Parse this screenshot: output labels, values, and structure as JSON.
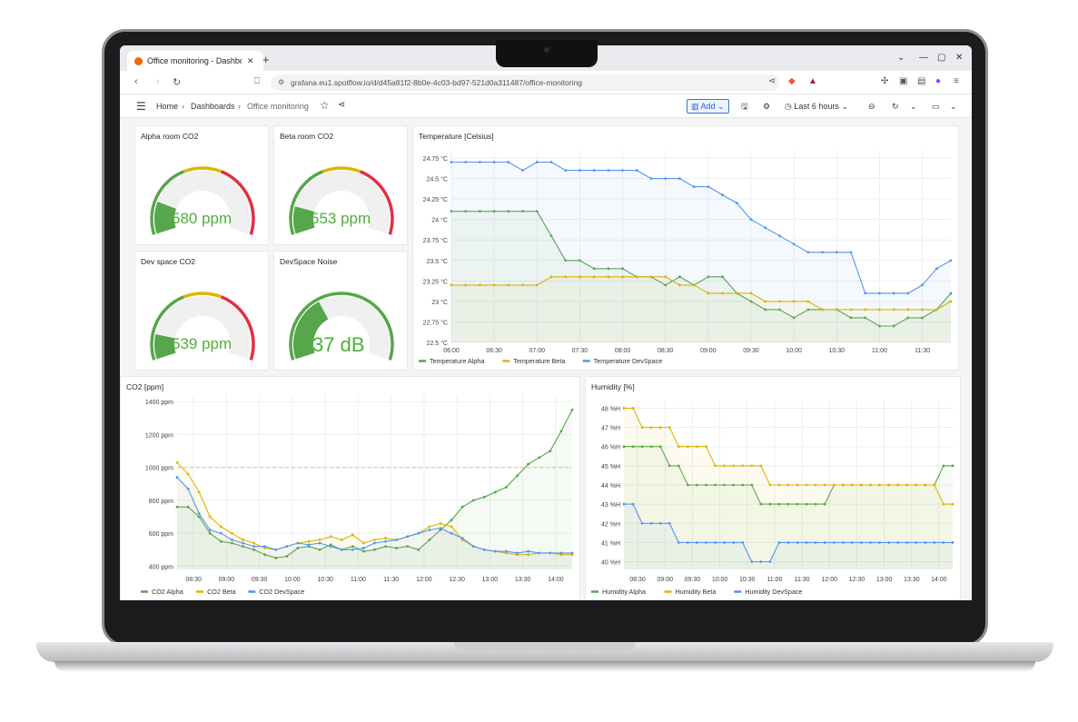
{
  "browser": {
    "tab_title": "Office monitoring - Dashboa",
    "url": "grafana.eu1.spotflow.io/d/d45a81f2-8b0e-4c03-bd97-521d0a311487/office-monitoring"
  },
  "nav": {
    "breadcrumb": [
      "Home",
      "Dashboards",
      "Office monitoring"
    ],
    "add_label": "Add",
    "time_range": "Last 6 hours"
  },
  "gauges": [
    {
      "title": "Alpha room CO2",
      "value": 580,
      "display": "580 ppm",
      "min": 400,
      "max": 1400
    },
    {
      "title": "Beta room CO2",
      "value": 553,
      "display": "553 ppm",
      "min": 400,
      "max": 1400
    },
    {
      "title": "Dev space CO2",
      "value": 539,
      "display": "539 ppm",
      "min": 400,
      "max": 1400
    },
    {
      "title": "DevSpace Noise",
      "value": 37,
      "display": "37 dB",
      "min": 0,
      "max": 100
    }
  ],
  "colors": {
    "green": "#56a64b",
    "yellow": "#e0b400",
    "blue": "#5794f2",
    "red": "#e02f44",
    "gauge_bg": "#f0f0f0"
  },
  "chart_data": [
    {
      "type": "line",
      "title": "Temperature [Celsius]",
      "x": [
        "06:00",
        "06:10",
        "06:20",
        "06:30",
        "06:40",
        "06:50",
        "07:00",
        "07:10",
        "07:20",
        "07:30",
        "07:40",
        "07:50",
        "08:00",
        "08:10",
        "08:20",
        "08:30",
        "08:40",
        "08:50",
        "09:00",
        "09:10",
        "09:20",
        "09:30",
        "09:40",
        "09:50",
        "10:00",
        "10:10",
        "10:20",
        "10:30",
        "10:40",
        "10:50",
        "11:00",
        "11:10",
        "11:20",
        "11:30",
        "11:40",
        "11:50"
      ],
      "x_ticks": [
        "06:00",
        "06:30",
        "07:00",
        "07:30",
        "08:00",
        "08:30",
        "09:00",
        "09:30",
        "10:00",
        "10:30",
        "11:00",
        "11:30"
      ],
      "y_ticks": [
        "22.5 °C",
        "22.75 °C",
        "23 °C",
        "23.25 °C",
        "23.5 °C",
        "23.75 °C",
        "24 °C",
        "24.25 °C",
        "24.5 °C",
        "24.75 °C"
      ],
      "ylim": [
        22.5,
        24.85
      ],
      "series": [
        {
          "name": "Temperature Alpha",
          "color": "#56a64b",
          "values": [
            24.1,
            24.1,
            24.1,
            24.1,
            24.1,
            24.1,
            24.1,
            23.8,
            23.5,
            23.5,
            23.4,
            23.4,
            23.4,
            23.3,
            23.3,
            23.2,
            23.3,
            23.2,
            23.3,
            23.3,
            23.1,
            23.0,
            22.9,
            22.9,
            22.8,
            22.9,
            22.9,
            22.9,
            22.8,
            22.8,
            22.7,
            22.7,
            22.8,
            22.8,
            22.9,
            23.1
          ]
        },
        {
          "name": "Temperature Beta",
          "color": "#e0b400",
          "values": [
            23.2,
            23.2,
            23.2,
            23.2,
            23.2,
            23.2,
            23.2,
            23.3,
            23.3,
            23.3,
            23.3,
            23.3,
            23.3,
            23.3,
            23.3,
            23.3,
            23.2,
            23.2,
            23.1,
            23.1,
            23.1,
            23.1,
            23.0,
            23.0,
            23.0,
            23.0,
            22.9,
            22.9,
            22.9,
            22.9,
            22.9,
            22.9,
            22.9,
            22.9,
            22.9,
            23.0
          ]
        },
        {
          "name": "Temperature DevSpace",
          "color": "#5794f2",
          "values": [
            24.7,
            24.7,
            24.7,
            24.7,
            24.7,
            24.6,
            24.7,
            24.7,
            24.6,
            24.6,
            24.6,
            24.6,
            24.6,
            24.6,
            24.5,
            24.5,
            24.5,
            24.4,
            24.4,
            24.3,
            24.2,
            24.0,
            23.9,
            23.8,
            23.7,
            23.6,
            23.6,
            23.6,
            23.6,
            23.1,
            23.1,
            23.1,
            23.1,
            23.2,
            23.4,
            23.5
          ]
        }
      ]
    },
    {
      "type": "line",
      "title": "CO2 [ppm]",
      "x": [
        "08:15",
        "08:25",
        "08:35",
        "08:45",
        "08:55",
        "09:05",
        "09:15",
        "09:25",
        "09:35",
        "09:45",
        "09:55",
        "10:05",
        "10:15",
        "10:25",
        "10:35",
        "10:45",
        "10:55",
        "11:05",
        "11:15",
        "11:25",
        "11:35",
        "11:45",
        "11:55",
        "12:05",
        "12:15",
        "12:25",
        "12:35",
        "12:45",
        "12:55",
        "13:05",
        "13:15",
        "13:25",
        "13:35",
        "13:45",
        "13:55",
        "14:05",
        "14:15"
      ],
      "x_ticks": [
        "08:30",
        "09:00",
        "09:30",
        "10:00",
        "10:30",
        "11:00",
        "11:30",
        "12:00",
        "12:30",
        "13:00",
        "13:30",
        "14:00"
      ],
      "y_ticks": [
        "400 ppm",
        "600 ppm",
        "800 ppm",
        "1000 ppm",
        "1200 ppm",
        "1400 ppm"
      ],
      "ylim": [
        380,
        1440
      ],
      "threshold": 1000,
      "series": [
        {
          "name": "CO2 Alpha",
          "color": "#56a64b",
          "values": [
            760,
            760,
            700,
            600,
            550,
            540,
            520,
            500,
            470,
            450,
            460,
            510,
            520,
            500,
            530,
            500,
            520,
            490,
            500,
            520,
            510,
            520,
            500,
            560,
            620,
            680,
            760,
            800,
            820,
            850,
            880,
            950,
            1020,
            1060,
            1100,
            1220,
            1350
          ]
        },
        {
          "name": "CO2 Beta",
          "color": "#e0b400",
          "values": [
            1030,
            960,
            850,
            700,
            640,
            600,
            560,
            540,
            510,
            500,
            520,
            540,
            550,
            560,
            580,
            560,
            590,
            540,
            560,
            570,
            560,
            580,
            600,
            640,
            660,
            640,
            560,
            520,
            500,
            490,
            480,
            470,
            470,
            480,
            480,
            470,
            470
          ]
        },
        {
          "name": "CO2 DevSpace",
          "color": "#5794f2",
          "values": [
            940,
            870,
            720,
            620,
            600,
            560,
            540,
            520,
            520,
            500,
            520,
            540,
            530,
            540,
            520,
            500,
            500,
            510,
            540,
            550,
            560,
            580,
            600,
            620,
            630,
            600,
            570,
            520,
            500,
            490,
            490,
            480,
            490,
            480,
            480,
            480,
            480
          ]
        }
      ]
    },
    {
      "type": "line",
      "title": "Humidity [%]",
      "x": [
        "08:15",
        "08:25",
        "08:35",
        "08:45",
        "08:55",
        "09:05",
        "09:15",
        "09:25",
        "09:35",
        "09:45",
        "09:55",
        "10:05",
        "10:15",
        "10:25",
        "10:35",
        "10:45",
        "10:55",
        "11:05",
        "11:15",
        "11:25",
        "11:35",
        "11:45",
        "11:55",
        "12:05",
        "12:15",
        "12:25",
        "12:35",
        "12:45",
        "12:55",
        "13:05",
        "13:15",
        "13:25",
        "13:35",
        "13:45",
        "13:55",
        "14:05",
        "14:15"
      ],
      "x_ticks": [
        "08:30",
        "09:00",
        "09:30",
        "10:00",
        "10:30",
        "11:00",
        "11:30",
        "12:00",
        "12:30",
        "13:00",
        "13:30",
        "14:00"
      ],
      "y_ticks": [
        "40 %H",
        "41 %H",
        "42 %H",
        "43 %H",
        "44 %H",
        "45 %H",
        "46 %H",
        "47 %H",
        "48 %H"
      ],
      "ylim": [
        39.6,
        48.4
      ],
      "series": [
        {
          "name": "Humidity Alpha",
          "color": "#56a64b",
          "values": [
            46,
            46,
            46,
            46,
            46,
            45,
            45,
            44,
            44,
            44,
            44,
            44,
            44,
            44,
            44,
            43,
            43,
            43,
            43,
            43,
            43,
            43,
            43,
            44,
            44,
            44,
            44,
            44,
            44,
            44,
            44,
            44,
            44,
            44,
            44,
            45,
            45
          ]
        },
        {
          "name": "Humidity Beta",
          "color": "#e0b400",
          "values": [
            48,
            48,
            47,
            47,
            47,
            47,
            46,
            46,
            46,
            46,
            45,
            45,
            45,
            45,
            45,
            45,
            44,
            44,
            44,
            44,
            44,
            44,
            44,
            44,
            44,
            44,
            44,
            44,
            44,
            44,
            44,
            44,
            44,
            44,
            44,
            43,
            43
          ]
        },
        {
          "name": "Humidity DevSpace",
          "color": "#5794f2",
          "values": [
            43,
            43,
            42,
            42,
            42,
            42,
            41,
            41,
            41,
            41,
            41,
            41,
            41,
            41,
            40,
            40,
            40,
            41,
            41,
            41,
            41,
            41,
            41,
            41,
            41,
            41,
            41,
            41,
            41,
            41,
            41,
            41,
            41,
            41,
            41,
            41,
            41
          ]
        }
      ]
    }
  ]
}
